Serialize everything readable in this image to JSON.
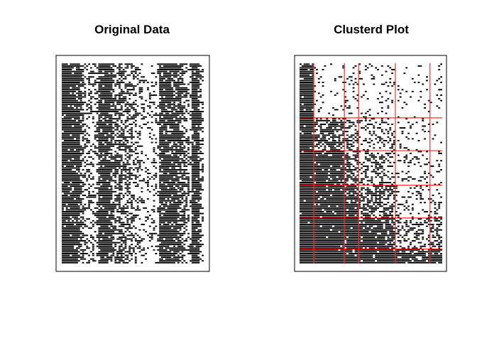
{
  "chart_data": [
    {
      "type": "heatmap",
      "title": "Original Data",
      "colors": {
        "cell": "#000000",
        "background": "#ffffff",
        "frame": "#000000"
      },
      "grid": false,
      "rows": 110,
      "cols": 70,
      "column_densities": [
        0.95,
        0.95,
        0.95,
        0.9,
        0.9,
        0.85,
        0.9,
        0.95,
        0.9,
        0.75,
        0.55,
        0.4,
        0.35,
        0.35,
        0.3,
        0.3,
        0.3,
        0.45,
        0.9,
        0.9,
        0.9,
        0.9,
        0.9,
        0.85,
        0.85,
        0.6,
        0.55,
        0.55,
        0.7,
        0.65,
        0.5,
        0.5,
        0.5,
        0.45,
        0.45,
        0.4,
        0.35,
        0.3,
        0.25,
        0.25,
        0.2,
        0.2,
        0.2,
        0.2,
        0.2,
        0.25,
        0.25,
        0.2,
        0.9,
        0.9,
        0.9,
        0.9,
        0.85,
        0.85,
        0.85,
        0.85,
        0.8,
        0.8,
        0.75,
        0.6,
        0.5,
        0.45,
        0.35,
        0.3,
        0.9,
        0.95,
        0.95,
        0.9,
        0.5,
        0.25
      ]
    },
    {
      "type": "heatmap",
      "title": "Clusterd Plot",
      "colors": {
        "cell": "#000000",
        "background": "#ffffff",
        "frame": "#000000",
        "cluster_lines": "#ff2a2a"
      },
      "grid": false,
      "rows": 110,
      "cols": 70,
      "col_cluster_boundaries": [
        7,
        22,
        29,
        47,
        64
      ],
      "row_cluster_boundaries": [
        30,
        48,
        67,
        85,
        102
      ]
    }
  ]
}
